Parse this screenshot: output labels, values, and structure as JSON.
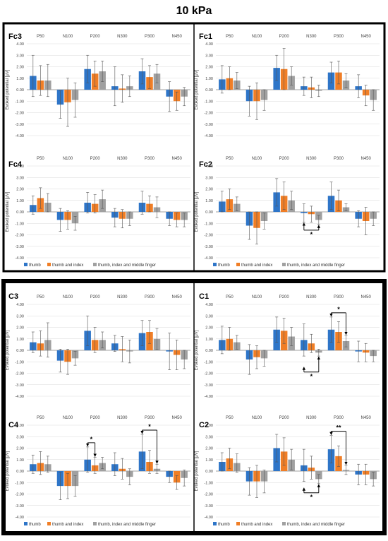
{
  "title": "10 kPa",
  "legend": [
    "thumb",
    "thumb and index",
    "thumb, index and middle finger"
  ],
  "colors": [
    "#2E75C8",
    "#F07E26",
    "#A0A0A0"
  ],
  "chart_data": [
    {
      "type": "bar",
      "name": "Fc3",
      "ylabel": "Evoked potential [μV]",
      "ylim": [
        -4,
        4
      ],
      "categories": [
        "P50",
        "N100",
        "P200",
        "N300",
        "P300",
        "N450"
      ],
      "series": [
        {
          "name": "thumb",
          "values": [
            1.2,
            -1.3,
            1.8,
            0.3,
            1.6,
            -0.6
          ],
          "errors": [
            1.8,
            1.2,
            1.2,
            1.7,
            1.1,
            1.3
          ]
        },
        {
          "name": "thumb and index",
          "values": [
            0.8,
            -1.1,
            1.4,
            0.1,
            1.1,
            -1.0
          ],
          "errors": [
            1.3,
            2.1,
            1.1,
            1.2,
            1.0,
            0.8
          ]
        },
        {
          "name": "thumb, index and middle finger",
          "values": [
            0.8,
            -0.9,
            1.6,
            0.3,
            1.4,
            -0.6
          ],
          "errors": [
            1.4,
            1.5,
            0.9,
            0.9,
            0.8,
            0.8
          ]
        }
      ]
    },
    {
      "type": "bar",
      "name": "Fc1",
      "ylabel": "Evoked potential [μV]",
      "ylim": [
        -4,
        4
      ],
      "categories": [
        "P50",
        "N100",
        "P200",
        "N300",
        "P300",
        "N450"
      ],
      "series": [
        {
          "name": "thumb",
          "values": [
            0.9,
            -1.0,
            1.9,
            0.3,
            1.5,
            0.3
          ],
          "errors": [
            1.2,
            1.3,
            1.1,
            0.8,
            0.9,
            1.0
          ]
        },
        {
          "name": "thumb and index",
          "values": [
            1.0,
            -1.0,
            1.8,
            0.2,
            1.5,
            -0.5
          ],
          "errors": [
            1.0,
            1.6,
            1.8,
            0.9,
            1.0,
            0.9
          ]
        },
        {
          "name": "thumb, index and middle finger",
          "values": [
            0.8,
            -0.9,
            1.2,
            -0.1,
            0.8,
            -0.9
          ],
          "errors": [
            0.7,
            0.9,
            0.8,
            0.5,
            0.6,
            0.9
          ]
        }
      ]
    },
    {
      "type": "bar",
      "name": "Fc4",
      "ylabel": "Evoked potential [μV]",
      "ylim": [
        -4,
        4
      ],
      "categories": [
        "P50",
        "N100",
        "P200",
        "N300",
        "P300",
        "N450"
      ],
      "series": [
        {
          "name": "thumb",
          "values": [
            0.6,
            -0.7,
            0.8,
            -0.5,
            0.8,
            -0.6
          ],
          "errors": [
            0.8,
            1.0,
            0.9,
            0.8,
            1.0,
            0.6
          ]
        },
        {
          "name": "thumb and index",
          "values": [
            1.2,
            -0.7,
            0.7,
            -0.6,
            0.7,
            -0.7
          ],
          "errors": [
            0.9,
            0.8,
            0.8,
            0.8,
            0.7,
            0.6
          ]
        },
        {
          "name": "thumb, index and middle finger",
          "values": [
            0.8,
            -1.0,
            1.1,
            -0.6,
            0.4,
            -0.7
          ],
          "errors": [
            0.8,
            0.6,
            0.8,
            0.6,
            0.9,
            0.6
          ]
        }
      ]
    },
    {
      "type": "bar",
      "name": "Fc2",
      "ylabel": "Evoked potential [μV]",
      "ylim": [
        -4,
        4
      ],
      "categories": [
        "P50",
        "N100",
        "P200",
        "N300",
        "P300",
        "N450"
      ],
      "series": [
        {
          "name": "thumb",
          "values": [
            0.9,
            -1.2,
            1.7,
            -0.1,
            1.4,
            -0.6
          ],
          "errors": [
            0.9,
            1.2,
            1.2,
            0.8,
            1.2,
            0.7
          ]
        },
        {
          "name": "thumb and index",
          "values": [
            1.1,
            -1.4,
            1.4,
            -0.2,
            1.0,
            -0.8
          ],
          "errors": [
            0.9,
            1.4,
            1.2,
            0.7,
            0.9,
            1.2
          ]
        },
        {
          "name": "thumb, index and middle finger",
          "values": [
            0.7,
            -0.8,
            1.0,
            -0.7,
            0.4,
            -0.6
          ],
          "errors": [
            0.6,
            0.7,
            0.8,
            0.4,
            0.3,
            0.6
          ]
        }
      ]
    },
    {
      "type": "bar",
      "name": "C3",
      "ylabel": "Evoked potential [μV]",
      "ylim": [
        -4,
        4
      ],
      "categories": [
        "P50",
        "N100",
        "P200",
        "N300",
        "P300",
        "N450"
      ],
      "series": [
        {
          "name": "thumb",
          "values": [
            0.7,
            -0.9,
            1.7,
            0.6,
            1.5,
            -0.1
          ],
          "errors": [
            0.9,
            1.0,
            1.3,
            0.7,
            1.1,
            1.6
          ]
        },
        {
          "name": "thumb and index",
          "values": [
            0.6,
            -1.0,
            0.9,
            0.1,
            1.6,
            -0.4
          ],
          "errors": [
            1.1,
            1.1,
            1.1,
            1.1,
            1.0,
            1.3
          ]
        },
        {
          "name": "thumb, index and middle finger",
          "values": [
            0.9,
            -0.7,
            0.9,
            -0.1,
            1.0,
            -0.8
          ],
          "errors": [
            1.5,
            0.6,
            0.7,
            1.0,
            0.9,
            0.8
          ]
        }
      ]
    },
    {
      "type": "bar",
      "name": "C1",
      "ylabel": "Evoked potential [μV]",
      "ylim": [
        -4,
        4
      ],
      "categories": [
        "P50",
        "N100",
        "P200",
        "N300",
        "P300",
        "N450"
      ],
      "series": [
        {
          "name": "thumb",
          "values": [
            0.9,
            -0.8,
            1.8,
            0.9,
            1.8,
            -0.1
          ],
          "errors": [
            1.2,
            1.3,
            1.1,
            1.4,
            1.1,
            0.9
          ]
        },
        {
          "name": "thumb and index",
          "values": [
            1.0,
            -0.6,
            1.7,
            0.6,
            1.6,
            -0.2
          ],
          "errors": [
            1.0,
            1.0,
            1.1,
            0.8,
            0.9,
            0.8
          ]
        },
        {
          "name": "thumb, index and middle finger",
          "values": [
            0.7,
            -0.7,
            1.2,
            -0.2,
            0.8,
            -0.5
          ],
          "errors": [
            0.6,
            0.7,
            0.8,
            0.3,
            0.5,
            0.5
          ]
        }
      ]
    },
    {
      "type": "bar",
      "name": "C4",
      "ylabel": "Evoked potential [μV]",
      "ylim": [
        -4,
        4
      ],
      "categories": [
        "P50",
        "N100",
        "P200",
        "N300",
        "P300",
        "N450"
      ],
      "series": [
        {
          "name": "thumb",
          "values": [
            0.6,
            -1.3,
            1.0,
            0.6,
            1.7,
            -0.5
          ],
          "errors": [
            0.8,
            1.2,
            1.1,
            1.0,
            1.5,
            0.5
          ]
        },
        {
          "name": "thumb and index",
          "values": [
            0.7,
            -1.3,
            0.5,
            0.2,
            0.8,
            -1.0
          ],
          "errors": [
            1.0,
            1.1,
            0.7,
            0.9,
            1.0,
            0.6
          ]
        },
        {
          "name": "thumb, index and middle finger",
          "values": [
            0.6,
            -1.3,
            0.7,
            -0.5,
            0.2,
            -0.6
          ],
          "errors": [
            0.7,
            0.9,
            0.5,
            0.7,
            0.4,
            0.7
          ]
        }
      ]
    },
    {
      "type": "bar",
      "name": "C2",
      "ylabel": "Evoked potential [μV]",
      "ylim": [
        -4,
        4
      ],
      "categories": [
        "P50",
        "N100",
        "P200",
        "N300",
        "P300",
        "N450"
      ],
      "series": [
        {
          "name": "thumb",
          "values": [
            0.8,
            -0.9,
            2.0,
            0.5,
            1.9,
            -0.3
          ],
          "errors": [
            0.8,
            1.2,
            1.2,
            1.4,
            1.2,
            0.9
          ]
        },
        {
          "name": "thumb and index",
          "values": [
            1.1,
            -0.9,
            1.7,
            0.3,
            1.3,
            -0.3
          ],
          "errors": [
            0.9,
            1.4,
            1.2,
            1.0,
            0.9,
            0.9
          ]
        },
        {
          "name": "thumb, index and middle finger",
          "values": [
            0.7,
            -0.9,
            1.0,
            -0.7,
            0.1,
            -0.7
          ],
          "errors": [
            0.8,
            1.0,
            0.9,
            0.4,
            0.4,
            0.6
          ]
        }
      ]
    }
  ],
  "significance": [
    {
      "panel": "Fc2",
      "label": "*",
      "position": "below",
      "from": {
        "category": "N300",
        "series": 0
      },
      "to": {
        "category": "N300",
        "series": 2
      }
    },
    {
      "panel": "C1",
      "label": "*",
      "position": "above",
      "from": {
        "category": "P300",
        "series": 0
      },
      "to": {
        "category": "P300",
        "series": 2
      }
    },
    {
      "panel": "C1",
      "label": "*",
      "position": "below",
      "from": {
        "category": "N300",
        "series": 0
      },
      "to": {
        "category": "N300",
        "series": 2
      }
    },
    {
      "panel": "C4",
      "label": "*",
      "position": "above",
      "from": {
        "category": "P200",
        "series": 0
      },
      "to": {
        "category": "P200",
        "series": 1
      }
    },
    {
      "panel": "C4",
      "label": "*",
      "position": "above",
      "from": {
        "category": "P300",
        "series": 0
      },
      "to": {
        "category": "P300",
        "series": 2
      }
    },
    {
      "panel": "C2",
      "label": "**",
      "position": "above",
      "from": {
        "category": "P300",
        "series": 0
      },
      "to": {
        "category": "P300",
        "series": 2
      }
    },
    {
      "panel": "C2",
      "label": "*",
      "position": "below",
      "from": {
        "category": "N300",
        "series": 0
      },
      "to": {
        "category": "N300",
        "series": 2
      }
    }
  ]
}
